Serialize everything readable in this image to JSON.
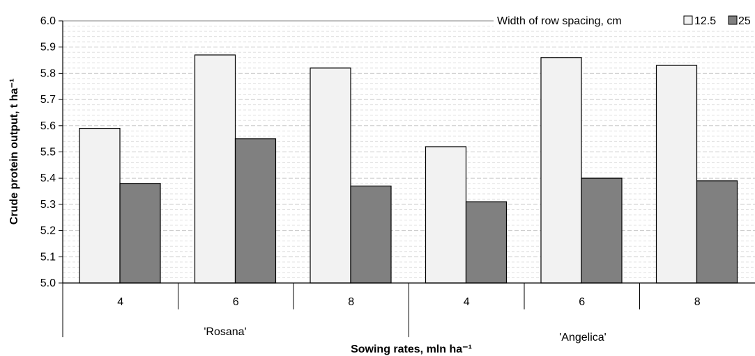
{
  "chart_data": {
    "type": "bar",
    "xlabel": "Sowing rates, mln ha⁻¹",
    "ylabel": "Crude protein output, t ha⁻¹",
    "ylim": [
      5.0,
      6.0
    ],
    "yticks": [
      "5.0",
      "5.1",
      "5.2",
      "5.3",
      "5.4",
      "5.5",
      "5.6",
      "5.7",
      "5.8",
      "5.9",
      "6.0"
    ],
    "groups": [
      "'Rosana'",
      "'Angelica'"
    ],
    "categories": [
      "4",
      "6",
      "8",
      "4",
      "6",
      "8"
    ],
    "series": [
      {
        "name": "12.5",
        "color": "#f2f2f2",
        "values": [
          5.59,
          5.87,
          5.82,
          5.52,
          5.86,
          5.83
        ]
      },
      {
        "name": "25",
        "color": "#808080",
        "values": [
          5.38,
          5.55,
          5.37,
          5.31,
          5.4,
          5.39
        ]
      }
    ],
    "legend": {
      "title": "Width of row spacing, cm",
      "position": "top-right"
    },
    "grid": "dashed-horizontal"
  }
}
